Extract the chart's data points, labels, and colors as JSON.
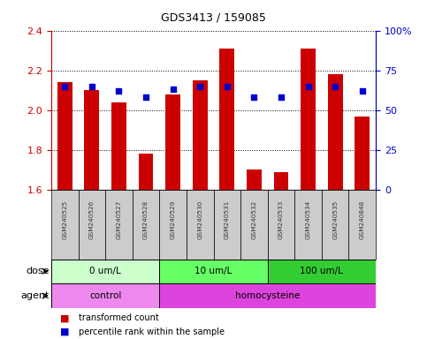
{
  "title": "GDS3413 / 159085",
  "samples": [
    "GSM240525",
    "GSM240526",
    "GSM240527",
    "GSM240528",
    "GSM240529",
    "GSM240530",
    "GSM240531",
    "GSM240532",
    "GSM240533",
    "GSM240534",
    "GSM240535",
    "GSM240848"
  ],
  "transformed_count": [
    2.14,
    2.1,
    2.04,
    1.78,
    2.08,
    2.15,
    2.31,
    1.7,
    1.69,
    2.31,
    2.18,
    1.97
  ],
  "percentile_rank": [
    65,
    65,
    62,
    58,
    63,
    65,
    65,
    58,
    58,
    65,
    65,
    62
  ],
  "bar_bottom": 1.6,
  "ylim_left": [
    1.6,
    2.4
  ],
  "ylim_right": [
    0,
    100
  ],
  "yticks_left": [
    1.6,
    1.8,
    2.0,
    2.2,
    2.4
  ],
  "yticks_right": [
    0,
    25,
    50,
    75,
    100
  ],
  "yticklabels_right": [
    "0",
    "25",
    "50",
    "75",
    "100%"
  ],
  "bar_color": "#cc0000",
  "dot_color": "#0000cc",
  "dose_groups": [
    {
      "label": "0 um/L",
      "start": 0,
      "end": 4,
      "color": "#ccffcc"
    },
    {
      "label": "10 um/L",
      "start": 4,
      "end": 8,
      "color": "#66ff66"
    },
    {
      "label": "100 um/L",
      "start": 8,
      "end": 12,
      "color": "#33cc33"
    }
  ],
  "agent_groups": [
    {
      "label": "control",
      "start": 0,
      "end": 4,
      "color": "#ee88ee"
    },
    {
      "label": "homocysteine",
      "start": 4,
      "end": 12,
      "color": "#dd44dd"
    }
  ],
  "dose_label": "dose",
  "agent_label": "agent",
  "legend_items": [
    {
      "color": "#cc0000",
      "label": "transformed count"
    },
    {
      "color": "#0000cc",
      "label": "percentile rank within the sample"
    }
  ],
  "left_axis_color": "#cc0000",
  "right_axis_color": "#0000cc",
  "sample_box_color": "#cccccc"
}
